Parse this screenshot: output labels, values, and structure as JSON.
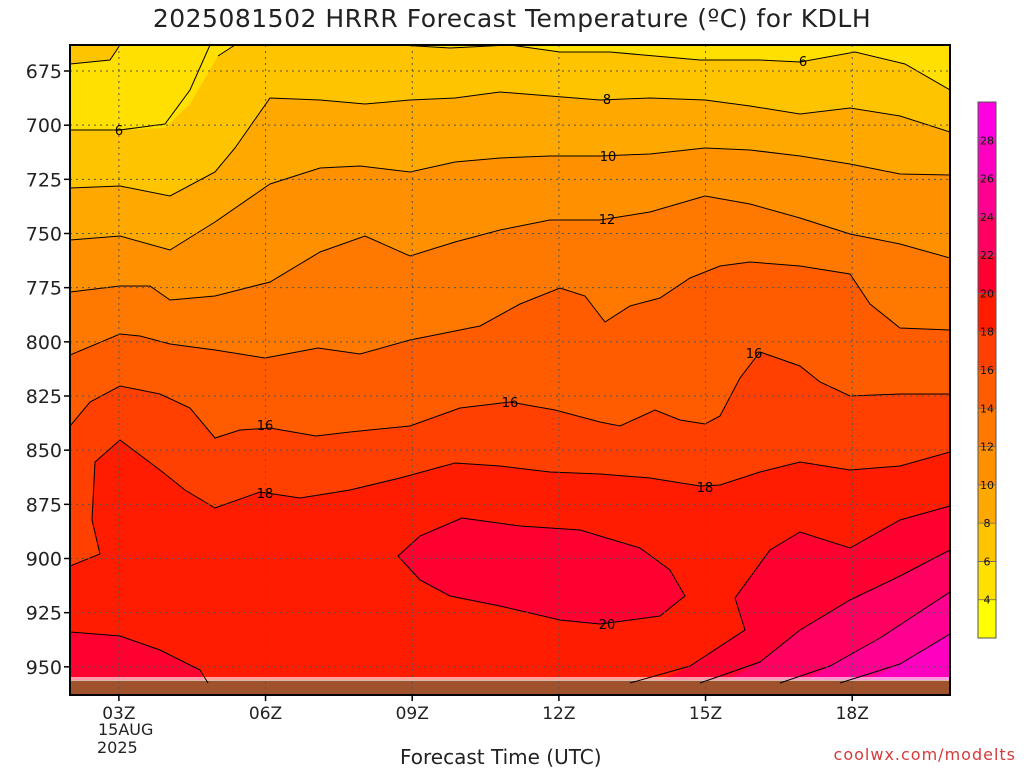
{
  "chart_data": {
    "type": "contour",
    "title": "2025081502 HRRR Forecast Temperature (ºC) for KDLH",
    "xlabel": "Forecast Time (UTC)",
    "ylabel": "",
    "x_ticks": [
      "03Z",
      "06Z",
      "09Z",
      "12Z",
      "15Z",
      "18Z"
    ],
    "x_date_labels": [
      "15AUG",
      "2025"
    ],
    "y_ticks": [
      675,
      700,
      725,
      750,
      775,
      800,
      825,
      850,
      875,
      900,
      925,
      950
    ],
    "y_range_hPa": [
      663,
      963
    ],
    "x_range_hours": [
      2,
      20
    ],
    "contour_levels": [
      6,
      8,
      10,
      12,
      14,
      16,
      18,
      20,
      22,
      24
    ],
    "contour_labels": [
      {
        "value": "6"
      },
      {
        "value": "6"
      },
      {
        "value": "8"
      },
      {
        "value": "10"
      },
      {
        "value": "12"
      },
      {
        "value": "16"
      },
      {
        "value": "16"
      },
      {
        "value": "16"
      },
      {
        "value": "18"
      },
      {
        "value": "18"
      },
      {
        "value": "20"
      }
    ],
    "colorbar": {
      "ticks": [
        "4",
        "6",
        "8",
        "10",
        "12",
        "14",
        "16",
        "18",
        "20",
        "22",
        "24",
        "26",
        "28"
      ],
      "colors": [
        "#ffff00",
        "#ffe000",
        "#ffc400",
        "#ffa800",
        "#ff9000",
        "#ff7800",
        "#ff5c00",
        "#ff4000",
        "#ff1c00",
        "#ff0030",
        "#ff0060",
        "#ff0090",
        "#ff00c0",
        "#ff00e0"
      ]
    },
    "colors": {
      "c4_6": "#ffe000",
      "c6_8": "#ffc400",
      "c8_10": "#ffa800",
      "c10_12": "#ff9000",
      "c12_14": "#ff7800",
      "c14_16": "#ff5c00",
      "c16_18": "#ff4000",
      "c18_20": "#ff1c00",
      "c20_22": "#ff0030",
      "c22_24": "#ff0060",
      "c24_26": "#ff0090",
      "c26_28": "#ff00c0",
      "ground": "#a0522d",
      "grid": "#555555"
    }
  },
  "watermark": "coolwx.com/modelts"
}
